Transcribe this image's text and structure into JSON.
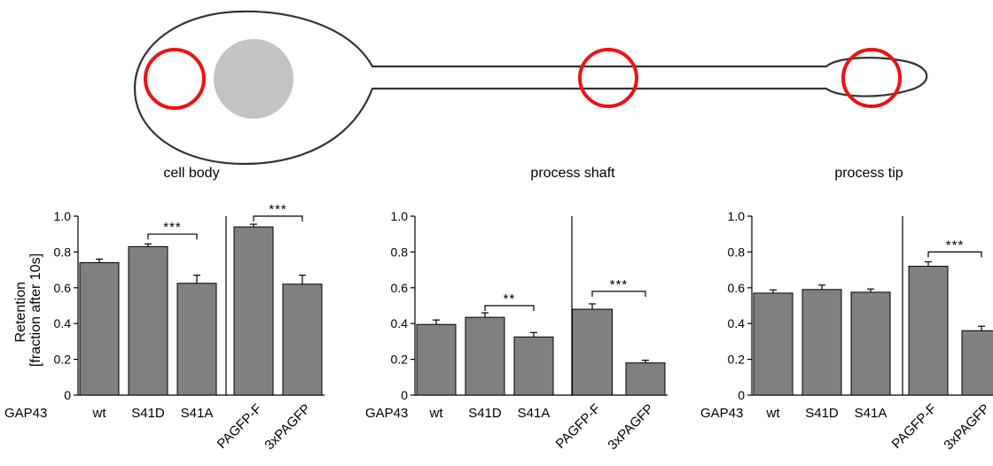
{
  "diagram": {
    "colors": {
      "outline": "#333333",
      "nucleus": "#c3c3c3",
      "roi": "#ee1111"
    },
    "regions": [
      {
        "id": "cell-body",
        "label": "cell body"
      },
      {
        "id": "process-shaft",
        "label": "process shaft"
      },
      {
        "id": "process-tip",
        "label": "process tip"
      }
    ]
  },
  "ylabel_lines": [
    "Retention",
    "[fraction after 10s]"
  ],
  "bar_color": "#808080",
  "chart_data": [
    {
      "type": "bar",
      "region": "cell body",
      "ylabel": "Retention [fraction after 10s]",
      "ylim": [
        0,
        1.0
      ],
      "yticks": [
        "0",
        "0.2",
        "0.4",
        "0.6",
        "0.8",
        "1.0"
      ],
      "group_prefix": "GAP43",
      "groups": [
        {
          "categories": [
            "wt",
            "S41D",
            "S41A"
          ],
          "values": [
            0.74,
            0.83,
            0.625
          ],
          "errors": [
            0.02,
            0.015,
            0.045
          ],
          "significance": {
            "from": 1,
            "to": 2,
            "label": "***",
            "y": 0.9
          }
        },
        {
          "categories": [
            "PAGFP-F",
            "3xPAGFP"
          ],
          "values": [
            0.94,
            0.62
          ],
          "errors": [
            0.015,
            0.05
          ],
          "significance": {
            "from": 0,
            "to": 1,
            "label": "***",
            "y": 1.0
          }
        }
      ]
    },
    {
      "type": "bar",
      "region": "process shaft",
      "ylim": [
        0,
        1.0
      ],
      "yticks": [
        "0",
        "0.2",
        "0.4",
        "0.6",
        "0.8",
        "1.0"
      ],
      "group_prefix": "GAP43",
      "groups": [
        {
          "categories": [
            "wt",
            "S41D",
            "S41A"
          ],
          "values": [
            0.395,
            0.435,
            0.325
          ],
          "errors": [
            0.025,
            0.025,
            0.025
          ],
          "significance": {
            "from": 1,
            "to": 2,
            "label": "**",
            "y": 0.5
          }
        },
        {
          "categories": [
            "PAGFP-F",
            "3xPAGFP"
          ],
          "values": [
            0.48,
            0.18
          ],
          "errors": [
            0.03,
            0.015
          ],
          "significance": {
            "from": 0,
            "to": 1,
            "label": "***",
            "y": 0.58
          }
        }
      ]
    },
    {
      "type": "bar",
      "region": "process tip",
      "ylim": [
        0,
        1.0
      ],
      "yticks": [
        "0",
        "0.2",
        "0.4",
        "0.6",
        "0.8",
        "1.0"
      ],
      "group_prefix": "GAP43",
      "groups": [
        {
          "categories": [
            "wt",
            "S41D",
            "S41A"
          ],
          "values": [
            0.57,
            0.59,
            0.575
          ],
          "errors": [
            0.018,
            0.025,
            0.018
          ],
          "significance": null
        },
        {
          "categories": [
            "PAGFP-F",
            "3xPAGFP"
          ],
          "values": [
            0.72,
            0.36
          ],
          "errors": [
            0.025,
            0.025
          ],
          "significance": {
            "from": 0,
            "to": 1,
            "label": "***",
            "y": 0.8
          }
        }
      ]
    }
  ]
}
